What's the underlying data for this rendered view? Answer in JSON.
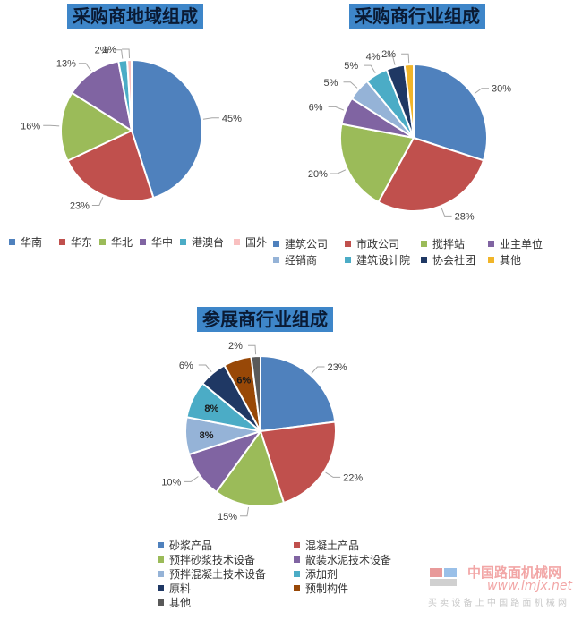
{
  "chart_data": [
    {
      "type": "pie",
      "title": "采购商地域组成",
      "labels": [
        "华南",
        "华东",
        "华北",
        "华中",
        "港澳台",
        "国外"
      ],
      "values": [
        45,
        23,
        16,
        13,
        2,
        1
      ],
      "value_labels": [
        "45%",
        "23%",
        "16%",
        "13%",
        "2%",
        "1%"
      ],
      "colors": [
        "#4f81bd",
        "#c0504d",
        "#9bbb59",
        "#8064a2",
        "#4bacc6",
        "#f9c0c0"
      ],
      "legend_position": "bottom"
    },
    {
      "type": "pie",
      "title": "采购商行业组成",
      "labels": [
        "建筑公司",
        "市政公司",
        "搅拌站",
        "业主单位",
        "经销商",
        "建筑设计院",
        "协会社团",
        "其他"
      ],
      "values": [
        30,
        28,
        20,
        6,
        5,
        5,
        4,
        2
      ],
      "value_labels": [
        "30%",
        "28%",
        "20%",
        "6%",
        "5%",
        "5%",
        "4%",
        "2%"
      ],
      "colors": [
        "#4f81bd",
        "#c0504d",
        "#9bbb59",
        "#8064a2",
        "#95b3d7",
        "#4bacc6",
        "#1f3864",
        "#f1b529"
      ],
      "legend_position": "bottom"
    },
    {
      "type": "pie",
      "title": "参展商行业组成",
      "labels": [
        "砂浆产品",
        "混凝土产品",
        "预拌砂浆技术设备",
        "散装水泥技术设备",
        "预拌混凝土技术设备",
        "添加剂",
        "原料",
        "预制构件",
        "其他"
      ],
      "values": [
        23,
        22,
        15,
        10,
        8,
        8,
        6,
        6,
        2
      ],
      "value_labels": [
        "23%",
        "22%",
        "15%",
        "10%",
        "8%",
        "8%",
        "6%",
        "6%",
        "2%"
      ],
      "colors": [
        "#4f81bd",
        "#c0504d",
        "#9bbb59",
        "#8064a2",
        "#95b3d7",
        "#4bacc6",
        "#1f3864",
        "#984807",
        "#595959"
      ],
      "legend_position": "bottom"
    }
  ],
  "watermark": {
    "site_name": "中国路面机械网",
    "url": "www.lmjx.net",
    "slogan": "买 卖 设 备 上 中 国 路 面 机 械 网"
  }
}
